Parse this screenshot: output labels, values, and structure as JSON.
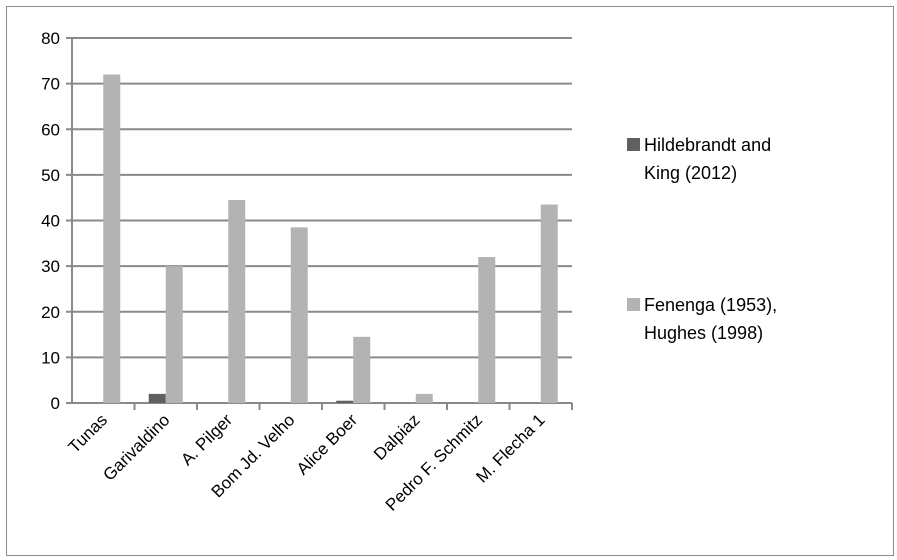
{
  "chart_data": {
    "type": "bar",
    "categories": [
      "Tunas",
      "Garivaldino",
      "A. Pilger",
      "Bom Jd. Velho",
      "Alice Boer",
      "Dalpiaz",
      "Pedro F. Schmitz",
      "M. Flecha 1"
    ],
    "series": [
      {
        "name": "Hildebrandt and King (2012)",
        "color": "#606060",
        "values": [
          0,
          2,
          0,
          0,
          0.5,
          0,
          0,
          0
        ]
      },
      {
        "name": "Fenenga (1953), Hughes (1998)",
        "color": "#b3b3b3",
        "values": [
          72,
          30,
          44.5,
          38.5,
          14.5,
          2,
          32,
          43.5
        ]
      }
    ],
    "title": "",
    "xlabel": "",
    "ylabel": "",
    "ylim": [
      0,
      80
    ],
    "yticks": [
      "0",
      "10",
      "20",
      "30",
      "40",
      "50",
      "60",
      "70",
      "80"
    ],
    "grid": true,
    "legend_position": "right",
    "legend_lines": [
      [
        "Hildebrandt and",
        "King (2012)"
      ],
      [
        "Fenenga (1953),",
        "Hughes (1998)"
      ]
    ]
  }
}
